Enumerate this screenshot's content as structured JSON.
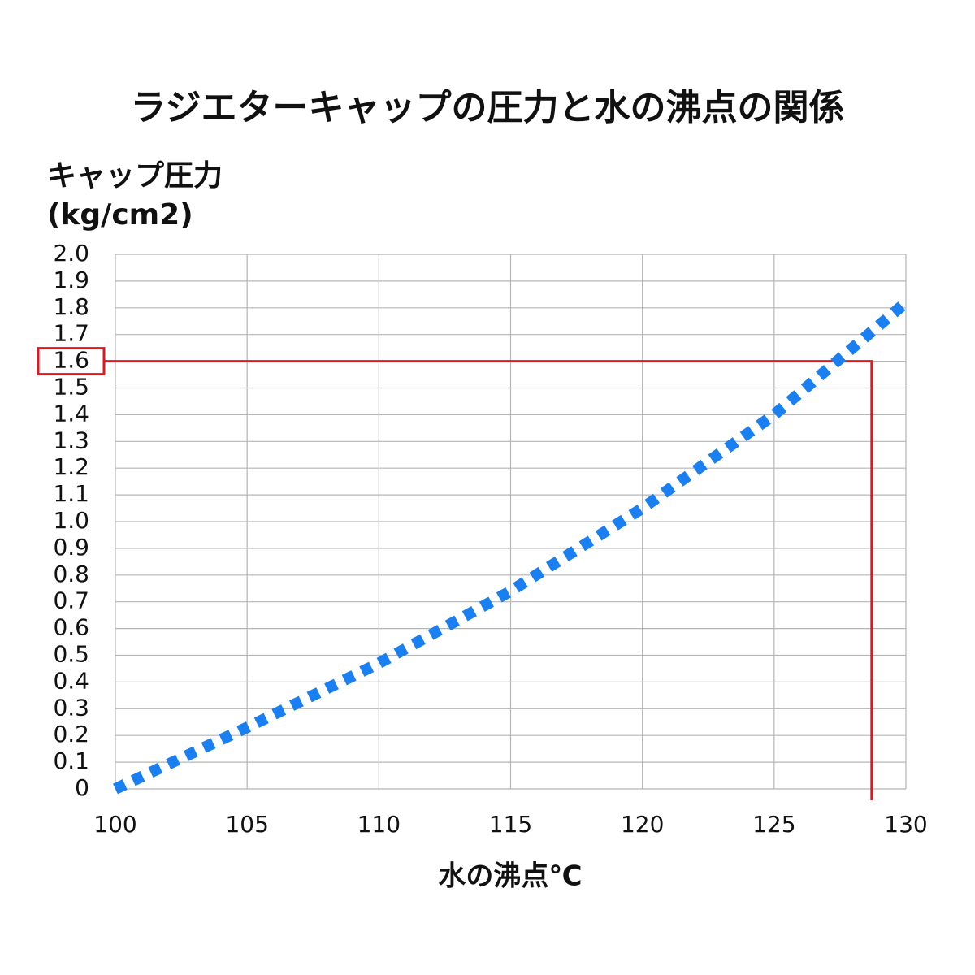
{
  "chart_data": {
    "type": "line",
    "title": "ラジエターキャップの圧力と水の沸点の関係",
    "ylabel": [
      "キャップ圧力",
      "(kg/cm2)"
    ],
    "xlabel": "水の沸点℃",
    "x": [
      100,
      105,
      110,
      115,
      120,
      125,
      130
    ],
    "values": [
      0,
      0.23,
      0.47,
      0.74,
      1.05,
      1.4,
      1.82
    ],
    "color": "#1a7ff0",
    "xlim": [
      100,
      130
    ],
    "xticks": [
      100,
      105,
      110,
      115,
      120,
      125,
      130
    ],
    "ylim": [
      0,
      2.0
    ],
    "yticks": [
      0,
      0.1,
      0.2,
      0.3,
      0.4,
      0.5,
      0.6,
      0.7,
      0.8,
      0.9,
      {
        "value": 1.0,
        "label": "1.0"
      },
      1.1,
      1.2,
      1.3,
      1.4,
      1.5,
      1.6,
      1.7,
      1.8,
      1.9,
      {
        "value": 2.0,
        "label": "2.0"
      }
    ],
    "grid": true,
    "highlight": {
      "x": 128.7,
      "y": 1.6,
      "color": "#e8141c"
    }
  }
}
